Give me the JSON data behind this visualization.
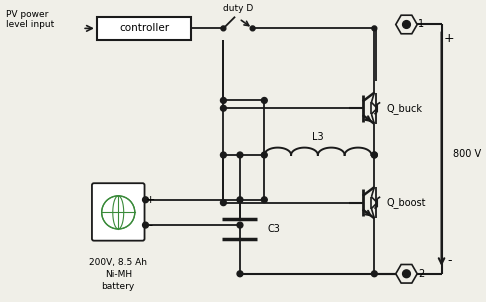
{
  "bg_color": "#f0efe8",
  "line_color": "#1a1a1a",
  "fig_width": 4.86,
  "fig_height": 3.02,
  "dpi": 100,
  "controller_label": "controller",
  "pv_label": "PV power\nlevel input",
  "duty_label": "duty D",
  "q_buck_label": "Q_buck",
  "q_boost_label": "Q_boost",
  "l3_label": "L3",
  "c3_label": "C3",
  "v800_label": "800 V",
  "battery_label": "200V, 8.5 Ah\nNi-MH\nbattery",
  "node1_label": "1",
  "node2_label": "2",
  "plus_label": "+",
  "minus_label": "-"
}
